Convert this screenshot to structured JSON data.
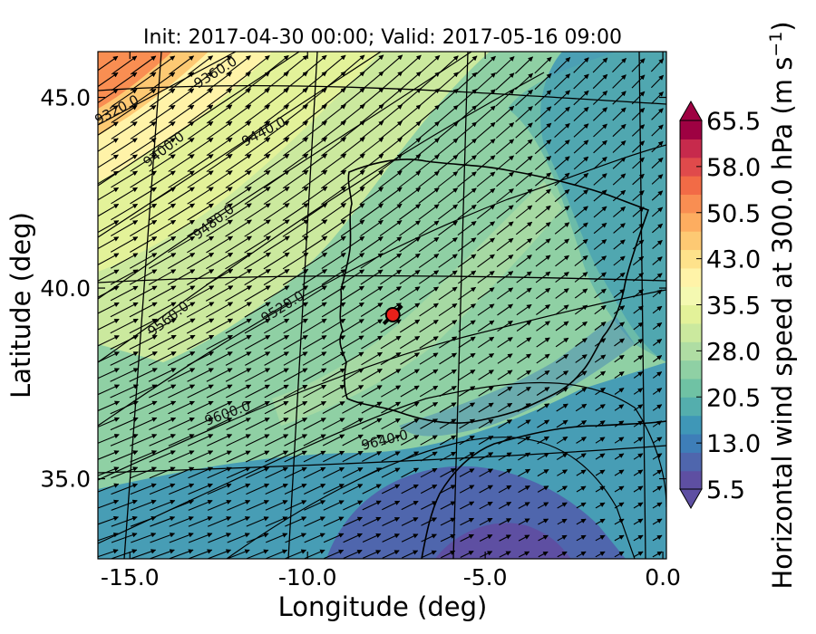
{
  "title": "Init: 2017-04-30 00:00; Valid: 2017-05-16 09:00",
  "xlabel": "Longitude (deg)",
  "ylabel": "Latitude (deg)",
  "x_ticks": [
    "-15.0",
    "-10.0",
    "-5.0",
    "0.0"
  ],
  "y_ticks": [
    "45.0",
    "40.0",
    "35.0"
  ],
  "colorbar": {
    "label_main": "Horizontal wind speed at 300.0 hPa (m s",
    "label_exp": "−1",
    "label_end": ")",
    "ticks": [
      "65.5",
      "58.0",
      "50.5",
      "43.0",
      "35.5",
      "28.0",
      "20.5",
      "13.0",
      "5.5"
    ],
    "colors": [
      "#5e4fa2",
      "#4f66ad",
      "#3e7eb8",
      "#3f97b7",
      "#54aead",
      "#6fc2a4",
      "#8fd0a4",
      "#afdda3",
      "#cbe99e",
      "#e3f299",
      "#f4f9b1",
      "#fff3a8",
      "#fee28b",
      "#fdc973",
      "#fdad60",
      "#f98e52",
      "#f26b46",
      "#e04a4b",
      "#c72a4c",
      "#9e0142"
    ],
    "min_value": 5.5,
    "max_value": 65.5,
    "extend": "both"
  },
  "contour_labels": [
    "9320.0",
    "9360.0",
    "9400.0",
    "9440.0",
    "9480.0",
    "9520.0",
    "9560.0",
    "9600.0",
    "9640.0"
  ],
  "marker": {
    "lon": -7.6,
    "lat": 39.3,
    "color": "#e8201a",
    "label": "location"
  },
  "chart_data": {
    "type": "map",
    "title": "Init: 2017-04-30 00:00; Valid: 2017-05-16 09:00",
    "xlabel": "Longitude (deg)",
    "ylabel": "Latitude (deg)",
    "xlim": [
      -15.9,
      0.1
    ],
    "ylim": [
      32.9,
      46.2
    ],
    "field": "Horizontal wind speed at 300.0 hPa",
    "units": "m s-1",
    "color_range": [
      5.5,
      65.5
    ],
    "contour_levels": [
      9320,
      9360,
      9400,
      9440,
      9480,
      9520,
      9560,
      9600,
      9640
    ],
    "grid": true
  }
}
